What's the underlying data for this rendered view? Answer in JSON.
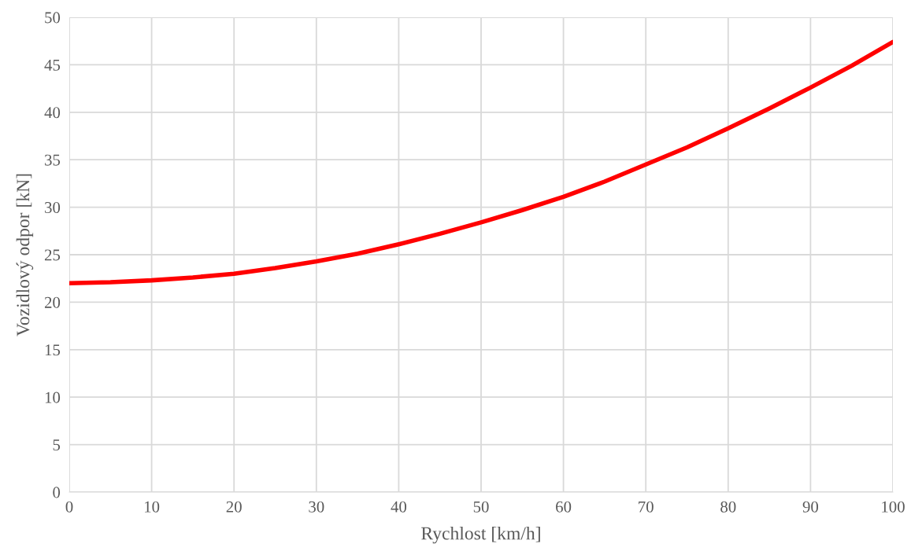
{
  "chart_data": {
    "type": "line",
    "xlabel": "Rychlost [km/h]",
    "ylabel": "Vozidlový odpor [kN]",
    "x": [
      0,
      5,
      10,
      15,
      20,
      25,
      30,
      35,
      40,
      45,
      50,
      55,
      60,
      65,
      70,
      75,
      80,
      85,
      90,
      95,
      100
    ],
    "series": [
      {
        "color": "#ff0000",
        "values": [
          22.0,
          22.1,
          22.3,
          22.6,
          23.0,
          23.6,
          24.3,
          25.1,
          26.1,
          27.2,
          28.4,
          29.7,
          31.1,
          32.7,
          34.5,
          36.3,
          38.3,
          40.4,
          42.6,
          44.9,
          47.4
        ]
      }
    ],
    "xlim": [
      0,
      100
    ],
    "xticks": [
      0,
      10,
      20,
      30,
      40,
      50,
      60,
      70,
      80,
      90,
      100
    ],
    "ylim": [
      0,
      50
    ],
    "yticks": [
      0,
      5,
      10,
      15,
      20,
      25,
      30,
      35,
      40,
      45,
      50
    ],
    "grid": true,
    "marker": "none",
    "line_style": "solid"
  }
}
